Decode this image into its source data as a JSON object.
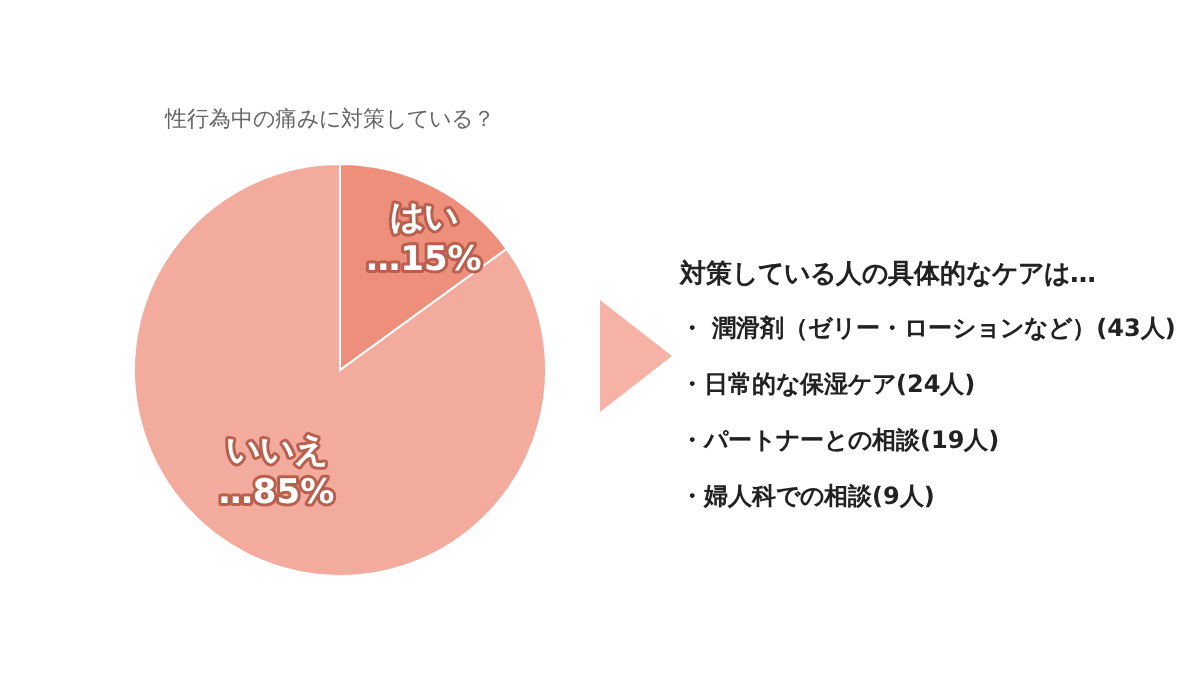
{
  "chart_data": [
    {
      "type": "pie",
      "title": "性行為中の痛みに対策している？",
      "categories": [
        "はい",
        "いいえ"
      ],
      "values": [
        15,
        85
      ],
      "colors": [
        "#ee8f7b",
        "#f2ab9c"
      ],
      "value_labels": [
        "…15%",
        "…85%"
      ],
      "legend": false
    },
    {
      "type": "other",
      "title": "対策している人の具体的なケアは…",
      "annotations": [
        "・ 潤滑剤（ゼリー・ローションなど）(43人)",
        "・日常的な保湿ケア(24人)",
        "・パートナーとの相談(19人)",
        "・婦人科での相談(9人)"
      ]
    }
  ]
}
